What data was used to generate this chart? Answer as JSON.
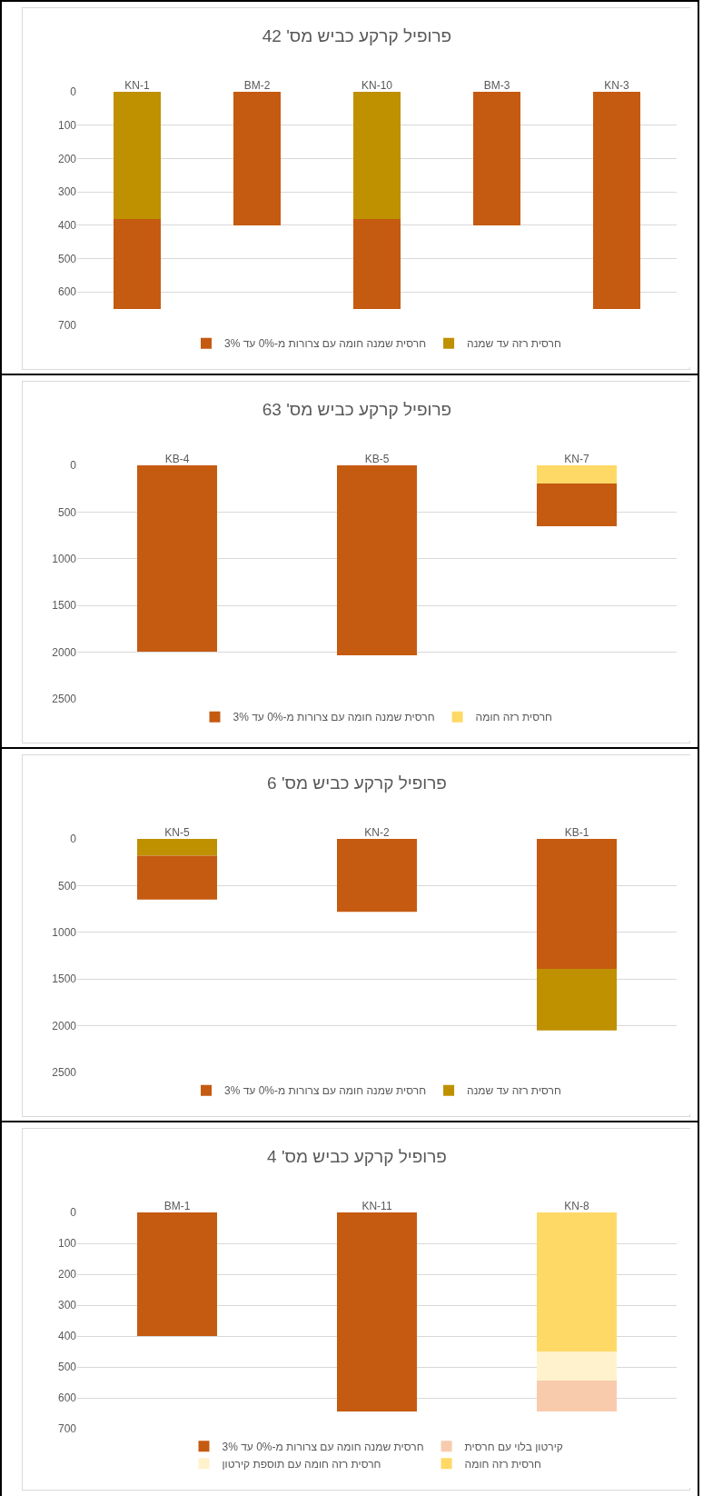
{
  "chart_data": [
    {
      "type": "bar",
      "title": "פרופיל קרקע כביש מס' 42",
      "categories": [
        "KN-1",
        "BM-2",
        "KN-10",
        "BM-3",
        "KN-3"
      ],
      "stacked": true,
      "ylim": [
        700,
        0
      ],
      "yticks": [
        0,
        100,
        200,
        300,
        400,
        500,
        600,
        700
      ],
      "grid": "y",
      "legend": "bottom",
      "series": [
        {
          "name": "חרסית רזה עד שמנה",
          "color": "#bf9000",
          "values": [
            380,
            null,
            380,
            null,
            null
          ]
        },
        {
          "name": "חרסית שמנה חומה עם צרורות מ-0% עד 3%",
          "color": "#c55a11",
          "values": [
            270,
            400,
            270,
            400,
            650
          ]
        }
      ]
    },
    {
      "type": "bar",
      "title": "פרופיל קרקע כביש מס' 63",
      "categories": [
        "KB-4",
        "KB-5",
        "KN-7"
      ],
      "stacked": true,
      "ylim": [
        2500,
        0
      ],
      "yticks": [
        0,
        500,
        1000,
        1500,
        2000,
        2500
      ],
      "grid": "y",
      "legend": "bottom",
      "series": [
        {
          "name": "חרסית רזה חומה",
          "color": "#ffd966",
          "values": [
            null,
            null,
            190
          ]
        },
        {
          "name": "חרסית שמנה חומה עם צרורות מ-0% עד 3%",
          "color": "#c55a11",
          "values": [
            1990,
            2030,
            460
          ]
        }
      ]
    },
    {
      "type": "bar",
      "title": "פרופיל קרקע כביש מס' 6",
      "categories": [
        "KN-5",
        "KN-2",
        "KB-1"
      ],
      "ylim": [
        2500,
        0
      ],
      "yticks": [
        0,
        500,
        1000,
        1500,
        2000,
        2500
      ],
      "grid": "y",
      "legend": "bottom",
      "series": [
        {
          "name": "חרסית רזה עד שמנה",
          "color": "#bf9000",
          "values": [
            180,
            null,
            660
          ],
          "base": [
            0,
            null,
            1390
          ]
        },
        {
          "name": "חרסית שמנה חומה עם צרורות מ-0% עד 3%",
          "color": "#c55a11",
          "values": [
            470,
            780,
            1390
          ],
          "base": [
            180,
            0,
            0
          ]
        }
      ]
    },
    {
      "type": "bar",
      "title": "פרופיל קרקע כביש מס' 4",
      "categories": [
        "BM-1",
        "KN-11",
        "KN-8"
      ],
      "stacked": true,
      "ylim": [
        700,
        0
      ],
      "yticks": [
        0,
        100,
        200,
        300,
        400,
        500,
        600,
        700
      ],
      "grid": "y",
      "legend": "bottom",
      "series": [
        {
          "name": "חרסית רזה חומה",
          "color": "#ffd966",
          "values": [
            null,
            null,
            450
          ]
        },
        {
          "name": "חרסית רזה חומה עם תוספת קירטון",
          "color": "#fff2cc",
          "values": [
            null,
            null,
            95
          ]
        },
        {
          "name": "קירטון בלוי עם חרסית",
          "color": "#f8cbad",
          "values": [
            null,
            null,
            100
          ]
        },
        {
          "name": "חרסית שמנה חומה עם צרורות מ-0% עד 3%",
          "color": "#c55a11",
          "values": [
            400,
            645,
            null
          ]
        }
      ]
    }
  ]
}
